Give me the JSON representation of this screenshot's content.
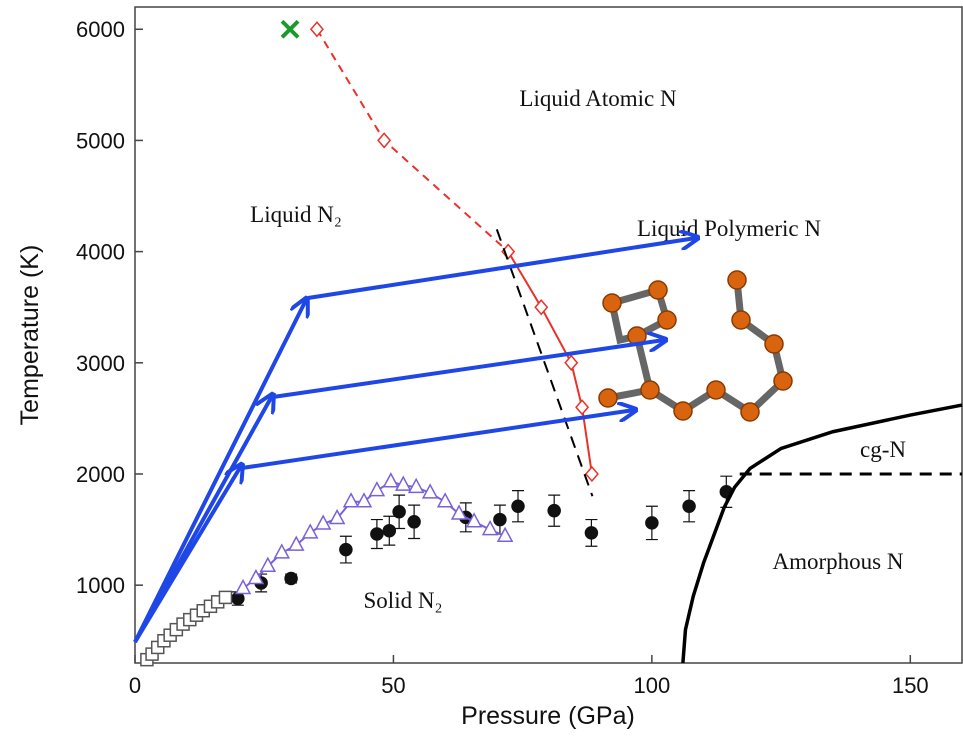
{
  "chart_data": {
    "type": "scatter",
    "x_label": "Pressure (GPa)",
    "y_label": "Temperature (K)",
    "xlim": [
      0,
      160
    ],
    "ylim": [
      300,
      6200
    ],
    "xticks": [
      0,
      50,
      100,
      150
    ],
    "yticks": [
      1000,
      2000,
      3000,
      4000,
      5000,
      6000
    ],
    "annotations": [
      {
        "text": "Liquid Atomic N"
      },
      {
        "text": "Liquid N₂"
      },
      {
        "text": "Liquid Polymeric N"
      },
      {
        "text": "cg-N"
      },
      {
        "text": "Amorphous N"
      },
      {
        "text": "Solid N₂"
      }
    ],
    "series": [
      {
        "color": "#e8322a",
        "marker": "diamond",
        "filled": false,
        "line": "solid",
        "dashed_segments": 2,
        "line_width": 2,
        "x": [
          35.2,
          48.2,
          72.2,
          78.6,
          84.4,
          86.5,
          88.4
        ],
        "values": [
          6000,
          5000,
          4000,
          3500,
          3000,
          2600,
          2000
        ]
      },
      {
        "color": "#1a9a2a",
        "marker": "x",
        "filled": false,
        "line": "none",
        "line_width": 4,
        "x": [
          30
        ],
        "values": [
          6000
        ]
      },
      {
        "color": "#111111",
        "marker": "circle",
        "filled": true,
        "line": "none",
        "line_width": 1.5,
        "x": [
          19.9,
          24.4,
          30.2,
          40.8,
          46.8,
          49.2,
          51.1,
          54,
          64,
          70.6,
          74.1,
          81.1,
          88.3,
          100,
          107.2,
          114.4
        ],
        "values": [
          880,
          1020,
          1060,
          1320,
          1460,
          1490,
          1660,
          1570,
          1610,
          1590,
          1710,
          1670,
          1470,
          1560,
          1710,
          1840
        ],
        "errors": [
          60,
          80,
          40,
          120,
          130,
          130,
          150,
          150,
          130,
          130,
          140,
          140,
          120,
          150,
          140,
          140
        ]
      },
      {
        "color": "#7b61d9",
        "marker": "triangle",
        "filled": false,
        "line": "solid",
        "line_width": 2,
        "x": [
          20.9,
          23.4,
          25.7,
          28.4,
          31.2,
          33.9,
          36.4,
          39.1,
          41.8,
          44.3,
          46.8,
          49.5,
          51.9,
          54.4,
          57.1,
          60,
          62.7,
          65.6,
          68.7,
          71.6
        ],
        "values": [
          970,
          1060,
          1170,
          1290,
          1360,
          1470,
          1550,
          1600,
          1750,
          1750,
          1850,
          1930,
          1900,
          1880,
          1830,
          1750,
          1640,
          1570,
          1500,
          1440
        ]
      },
      {
        "color": "#555555",
        "marker": "square",
        "filled": false,
        "line": "none",
        "line_width": 1,
        "x": [
          2.3,
          3.3,
          4.4,
          5.6,
          6.8,
          8,
          9.3,
          10.6,
          11.9,
          13.2,
          14.6,
          16,
          17.5
        ],
        "values": [
          330,
          380,
          440,
          500,
          550,
          600,
          650,
          690,
          730,
          770,
          810,
          850,
          890
        ]
      },
      {
        "color": "#000000",
        "marker": "none",
        "line": "solid",
        "line_width": 3.5,
        "x": [
          106,
          106.5,
          108,
          110,
          112,
          114,
          116,
          119,
          125,
          135,
          150,
          160
        ],
        "values": [
          300,
          600,
          900,
          1200,
          1450,
          1700,
          1880,
          2050,
          2230,
          2380,
          2530,
          2620
        ]
      },
      {
        "color": "#000000",
        "marker": "none",
        "line": "dashed",
        "line_width": 3,
        "x": [
          117,
          160
        ],
        "values": [
          2000,
          2000
        ]
      },
      {
        "color": "#000000",
        "marker": "none",
        "line": "dashed",
        "line_width": 2,
        "x": [
          70,
          88.5
        ],
        "values": [
          4200,
          1800
        ]
      }
    ]
  }
}
